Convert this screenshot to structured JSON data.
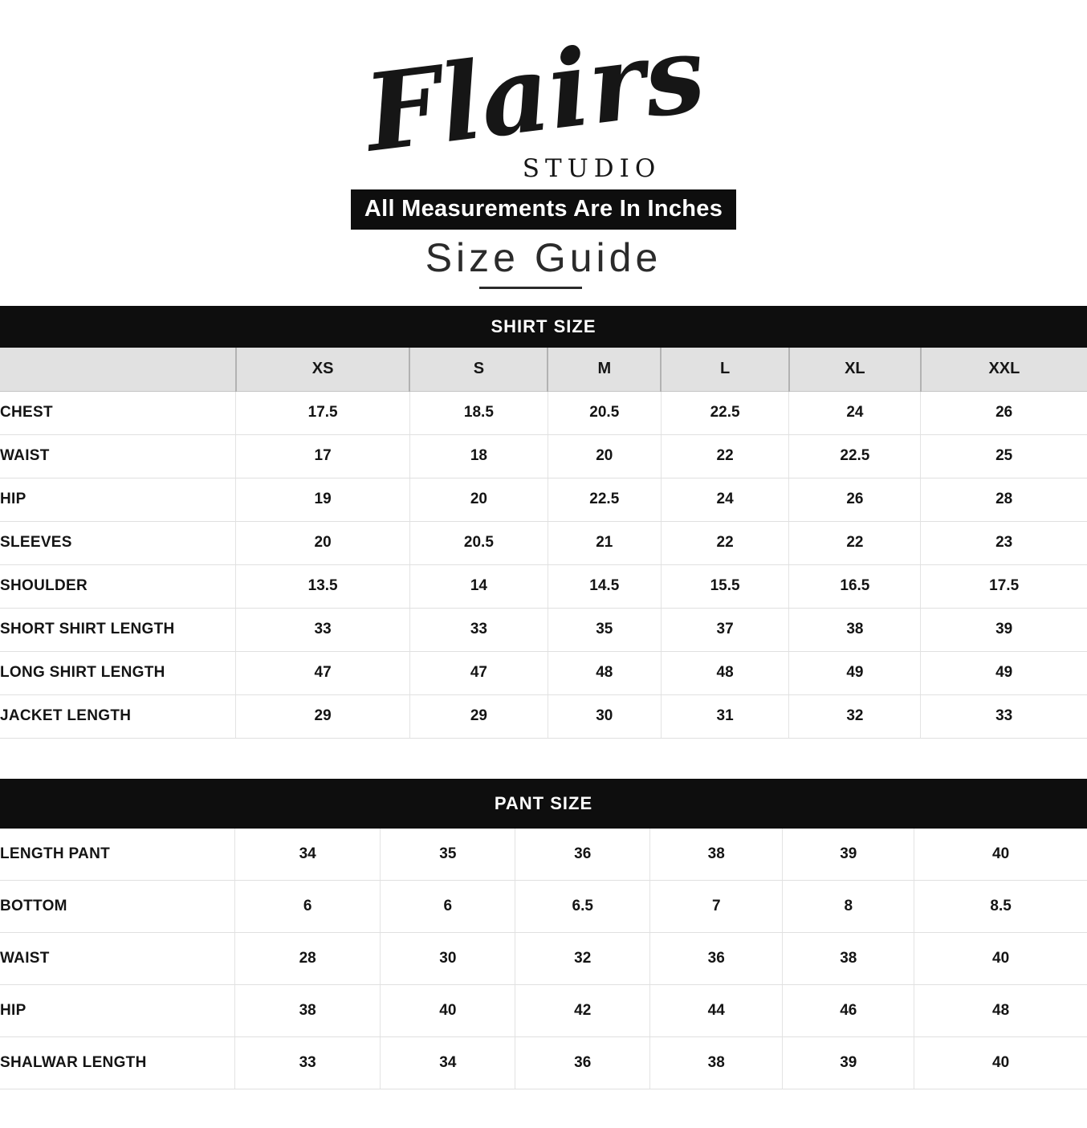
{
  "brand": {
    "name": "Flairs",
    "subtitle": "STUDIO"
  },
  "banner_text": "All Measurements Are In Inches",
  "page_title": "Size Guide",
  "shirt_table": {
    "title": "SHIRT SIZE",
    "columns": [
      "XS",
      "S",
      "M",
      "L",
      "XL",
      "XXL"
    ],
    "rows": [
      {
        "label": "CHEST",
        "values": [
          "17.5",
          "18.5",
          "20.5",
          "22.5",
          "24",
          "26"
        ]
      },
      {
        "label": "WAIST",
        "values": [
          "17",
          "18",
          "20",
          "22",
          "22.5",
          "25"
        ]
      },
      {
        "label": "HIP",
        "values": [
          "19",
          "20",
          "22.5",
          "24",
          "26",
          "28"
        ]
      },
      {
        "label": "SLEEVES",
        "values": [
          "20",
          "20.5",
          "21",
          "22",
          "22",
          "23"
        ]
      },
      {
        "label": "SHOULDER",
        "values": [
          "13.5",
          "14",
          "14.5",
          "15.5",
          "16.5",
          "17.5"
        ]
      },
      {
        "label": "SHORT SHIRT LENGTH",
        "values": [
          "33",
          "33",
          "35",
          "37",
          "38",
          "39"
        ]
      },
      {
        "label": "LONG SHIRT LENGTH",
        "values": [
          "47",
          "47",
          "48",
          "48",
          "49",
          "49"
        ]
      },
      {
        "label": "JACKET LENGTH",
        "values": [
          "29",
          "29",
          "30",
          "31",
          "32",
          "33"
        ]
      }
    ]
  },
  "pant_table": {
    "title": "PANT SIZE",
    "rows": [
      {
        "label": "LENGTH PANT",
        "values": [
          "34",
          "35",
          "36",
          "38",
          "39",
          "40"
        ]
      },
      {
        "label": "BOTTOM",
        "values": [
          "6",
          "6",
          "6.5",
          "7",
          "8",
          "8.5"
        ]
      },
      {
        "label": "WAIST",
        "values": [
          "28",
          "30",
          "32",
          "36",
          "38",
          "40"
        ]
      },
      {
        "label": "HIP",
        "values": [
          "38",
          "40",
          "42",
          "44",
          "46",
          "48"
        ]
      },
      {
        "label": "SHALWAR LENGTH",
        "values": [
          "33",
          "34",
          "36",
          "38",
          "39",
          "40"
        ]
      }
    ]
  },
  "colors": {
    "section_bar_bg": "#0e0e0e",
    "section_bar_text": "#ffffff",
    "column_header_bg": "#e1e1e1",
    "grid_line": "#e0e0e0",
    "text": "#141414",
    "page_bg": "#ffffff"
  }
}
